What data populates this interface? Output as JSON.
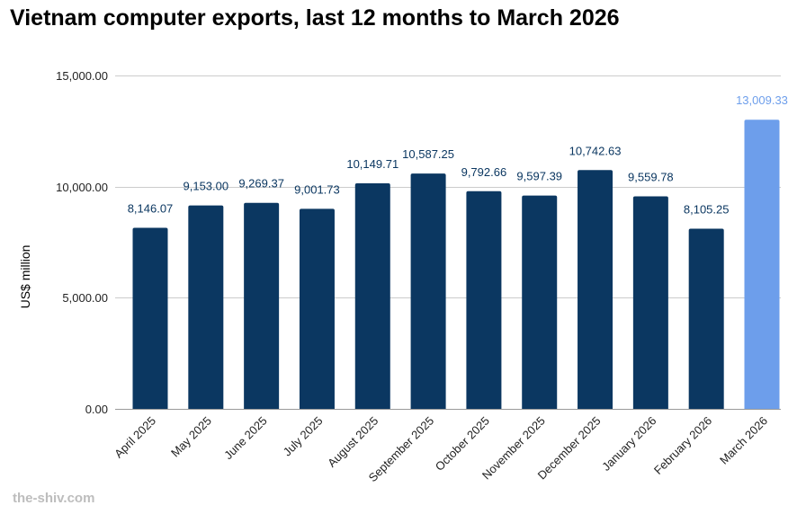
{
  "chart_data": {
    "type": "bar",
    "title": "Vietnam computer exports, last 12 months to March 2026",
    "xlabel": "",
    "ylabel": "US$ million",
    "ylim": [
      0,
      15000
    ],
    "yticks": [
      0,
      5000,
      10000,
      15000
    ],
    "ytick_labels": [
      "0.00",
      "5,000.00",
      "10,000.00",
      "15,000.00"
    ],
    "grid": true,
    "legend": "none",
    "categories": [
      "April 2025",
      "May 2025",
      "June 2025",
      "July 2025",
      "August 2025",
      "September 2025",
      "October 2025",
      "November 2025",
      "December 2025",
      "January 2026",
      "February 2026",
      "March 2026"
    ],
    "values": [
      8146.07,
      9153.0,
      9269.37,
      9001.73,
      10149.71,
      10587.25,
      9792.66,
      9597.39,
      10742.63,
      9559.78,
      8105.25,
      13009.33
    ],
    "data_labels": [
      "8,146.07",
      "9,153.00",
      "9,269.37",
      "9,001.73",
      "10,149.71",
      "10,587.25",
      "9,792.66",
      "9,597.39",
      "10,742.63",
      "9,559.78",
      "8,105.25",
      "13,009.33"
    ],
    "highlight_index": 11,
    "colors": {
      "bar": "#0b3761",
      "highlight_bar": "#6d9eeb",
      "label": "#0b3761",
      "highlight_label": "#6d9eeb",
      "grid": "#cccccc",
      "baseline": "#999999"
    }
  },
  "footer": {
    "watermark": "the-shiv.com"
  }
}
